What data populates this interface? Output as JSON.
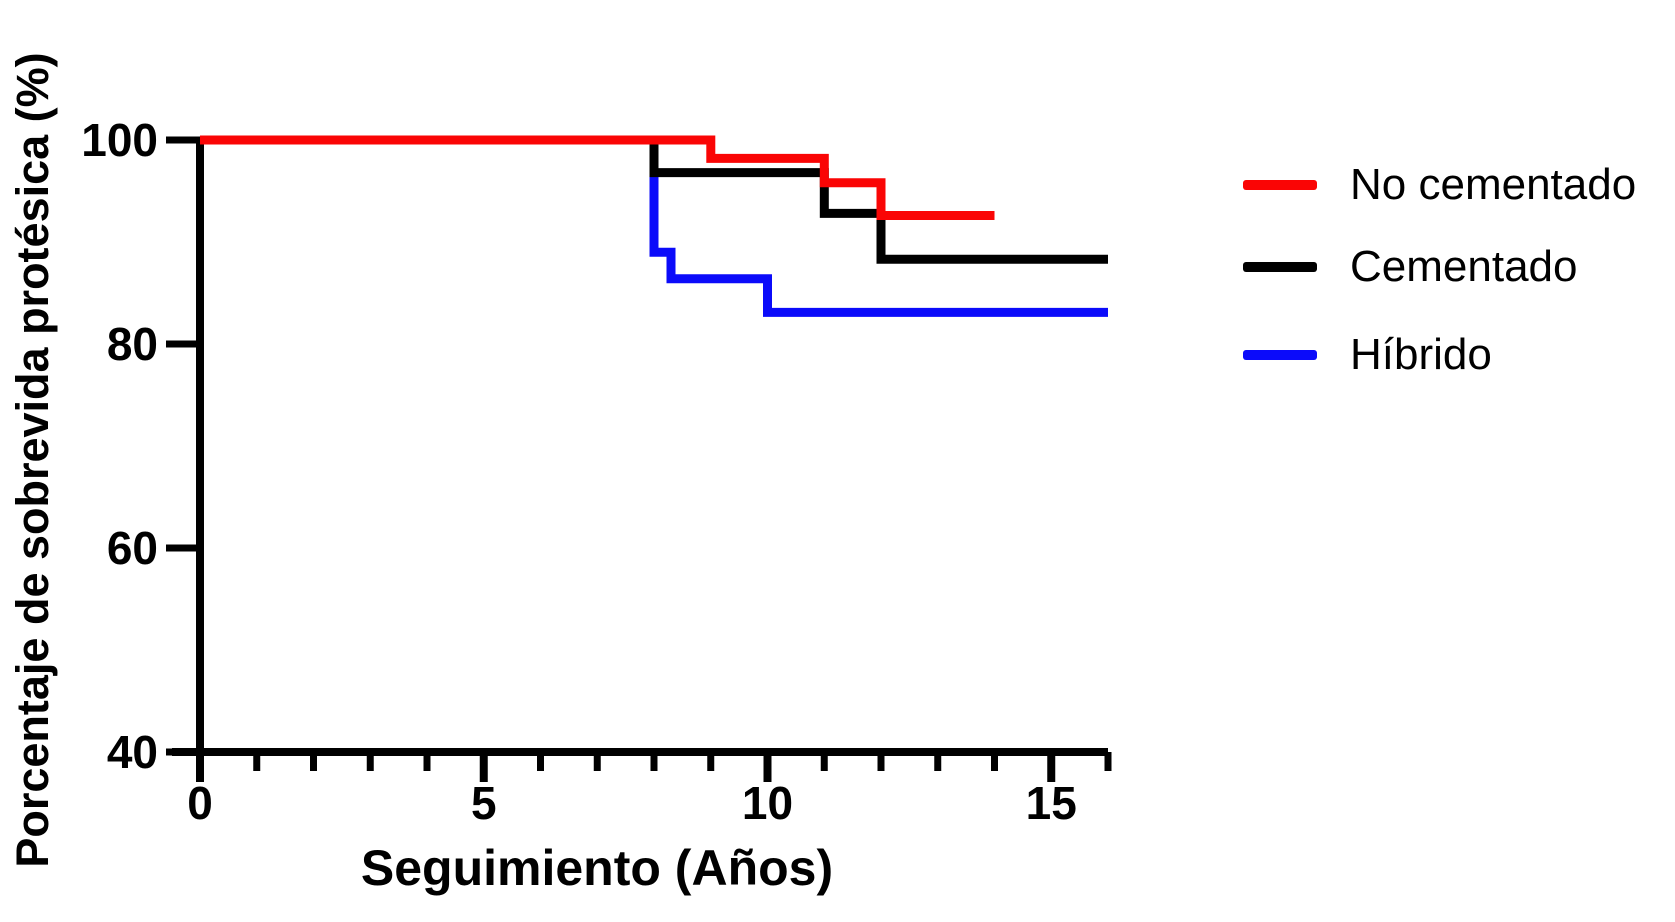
{
  "chart_data": {
    "type": "line",
    "subtype": "kaplan-meier-step",
    "title": "",
    "xlabel": "Seguimiento (Años)",
    "ylabel": "Porcentaje de sobrevida protésica (%)",
    "xlim": [
      0,
      16
    ],
    "ylim": [
      40,
      100
    ],
    "grid": false,
    "legend_position": "right",
    "x_ticks_major": [
      0,
      5,
      10,
      15
    ],
    "x_ticks_minor": [
      1,
      2,
      3,
      4,
      6,
      7,
      8,
      9,
      11,
      12,
      13,
      14,
      16
    ],
    "y_ticks": [
      40,
      60,
      80,
      100
    ],
    "axis_color": "#000000",
    "series": [
      {
        "name": "No cementado",
        "color": "#FA0505",
        "points": [
          [
            0,
            100
          ],
          [
            9,
            100
          ],
          [
            9,
            98.2
          ],
          [
            11,
            98.2
          ],
          [
            11,
            95.8
          ],
          [
            12,
            95.8
          ],
          [
            12,
            92.6
          ],
          [
            14,
            92.6
          ]
        ]
      },
      {
        "name": "Cementado",
        "color": "#000000",
        "points": [
          [
            0,
            100
          ],
          [
            8,
            100
          ],
          [
            8,
            96.8
          ],
          [
            11,
            96.8
          ],
          [
            11,
            92.8
          ],
          [
            12,
            92.8
          ],
          [
            12,
            88.3
          ],
          [
            16,
            88.3
          ]
        ]
      },
      {
        "name": "Híbrido",
        "color": "#0B0BFA",
        "points": [
          [
            0,
            100
          ],
          [
            8,
            100
          ],
          [
            8,
            89.0
          ],
          [
            8.3,
            89.0
          ],
          [
            8.3,
            86.4
          ],
          [
            10,
            86.4
          ],
          [
            10,
            83.1
          ],
          [
            16,
            83.1
          ]
        ]
      }
    ],
    "legend_y_positions": [
      185,
      267,
      355
    ]
  }
}
